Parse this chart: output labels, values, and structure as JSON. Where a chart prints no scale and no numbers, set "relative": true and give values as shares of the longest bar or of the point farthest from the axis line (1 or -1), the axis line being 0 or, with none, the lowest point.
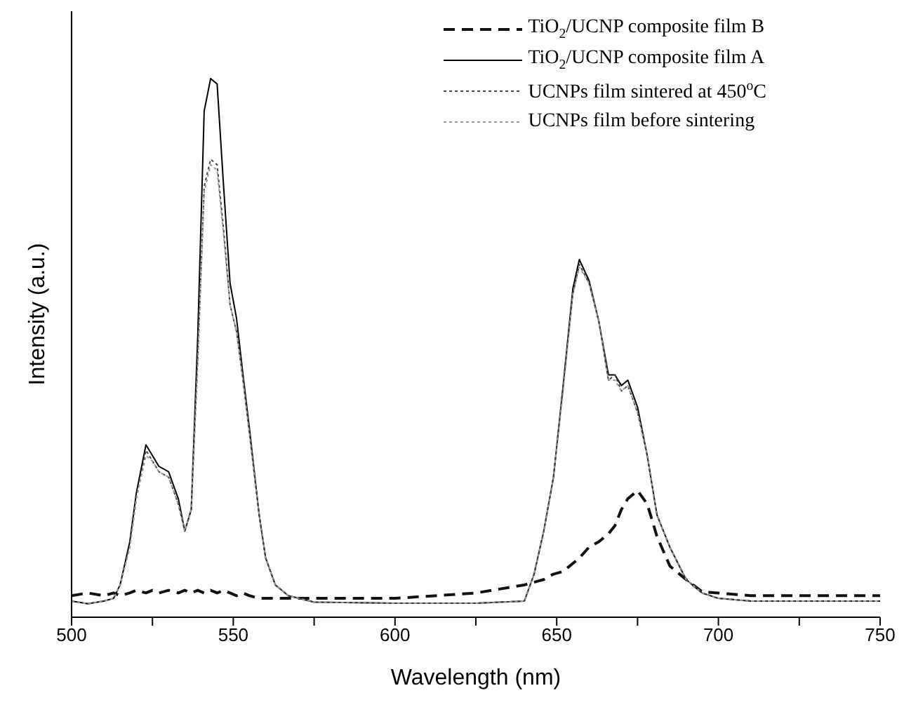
{
  "chart_data": {
    "type": "line",
    "relative": true,
    "xlabel": "Wavelength (nm)",
    "ylabel": "Intensity (a.u.)",
    "xlim": [
      500,
      750
    ],
    "xticks": [
      500,
      {
        "value": 525,
        "label": null
      },
      550,
      {
        "value": 575,
        "label": null
      },
      600,
      {
        "value": 625,
        "label": null
      },
      650,
      {
        "value": 675,
        "label": null
      },
      700,
      {
        "value": 725,
        "label": null
      },
      750
    ],
    "legend": "top right",
    "grid": false,
    "marker": "none",
    "x": [
      500,
      505,
      510,
      513,
      515,
      518,
      520,
      523,
      525,
      527,
      530,
      533,
      535,
      537,
      539,
      541,
      543,
      545,
      547,
      549,
      551,
      553,
      555,
      558,
      560,
      563,
      567,
      575,
      600,
      625,
      640,
      643,
      646,
      649,
      652,
      655,
      657,
      660,
      663,
      666,
      668,
      670,
      672,
      675,
      678,
      681,
      685,
      690,
      695,
      700,
      710,
      720,
      730,
      740,
      750
    ],
    "series": [
      {
        "name": "TiO$_{2}$/UCNP composite film B",
        "color": "#111111",
        "line_style": "dashed",
        "values": [
          0.04,
          0.045,
          0.04,
          0.045,
          0.04,
          0.045,
          0.05,
          0.045,
          0.05,
          0.045,
          0.05,
          0.045,
          0.05,
          0.045,
          0.05,
          0.045,
          0.05,
          0.045,
          0.05,
          0.045,
          0.04,
          0.045,
          0.04,
          0.035,
          0.035,
          0.035,
          0.035,
          0.035,
          0.035,
          0.045,
          0.06,
          0.065,
          0.07,
          0.08,
          0.085,
          0.1,
          0.11,
          0.13,
          0.14,
          0.155,
          0.17,
          0.2,
          0.22,
          0.235,
          0.21,
          0.15,
          0.095,
          0.07,
          0.047,
          0.045,
          0.04,
          0.04,
          0.04,
          0.04,
          0.04
        ]
      },
      {
        "name": "TiO$_{2}$/UCNP composite film A",
        "color": "#000000",
        "line_style": "solid",
        "values": [
          0.03,
          0.025,
          0.03,
          0.035,
          0.06,
          0.14,
          0.23,
          0.32,
          0.3,
          0.28,
          0.27,
          0.22,
          0.16,
          0.2,
          0.52,
          0.94,
          1,
          0.99,
          0.8,
          0.62,
          0.555,
          0.45,
          0.35,
          0.19,
          0.11,
          0.06,
          0.04,
          0.028,
          0.026,
          0.026,
          0.03,
          0.08,
          0.16,
          0.26,
          0.43,
          0.61,
          0.664,
          0.625,
          0.55,
          0.45,
          0.45,
          0.43,
          0.44,
          0.39,
          0.3,
          0.19,
          0.13,
          0.07,
          0.045,
          0.035,
          0.03,
          0.03,
          0.03,
          0.03,
          0.03
        ]
      },
      {
        "name": "UCNPs film sintered at 450$^{o}$C",
        "color": "#444444",
        "line_style": "dotted",
        "values": [
          0.03,
          0.025,
          0.03,
          0.035,
          0.06,
          0.13,
          0.22,
          0.31,
          0.29,
          0.27,
          0.26,
          0.21,
          0.16,
          0.2,
          0.48,
          0.8,
          0.85,
          0.84,
          0.72,
          0.58,
          0.53,
          0.44,
          0.34,
          0.19,
          0.11,
          0.06,
          0.04,
          0.028,
          0.026,
          0.026,
          0.03,
          0.08,
          0.16,
          0.26,
          0.43,
          0.6,
          0.655,
          0.62,
          0.55,
          0.44,
          0.45,
          0.42,
          0.43,
          0.38,
          0.3,
          0.19,
          0.13,
          0.07,
          0.045,
          0.035,
          0.03,
          0.03,
          0.03,
          0.03,
          0.03
        ]
      },
      {
        "name": "UCNPs film before sintering",
        "color": "#999999",
        "line_style": "dotted",
        "values": [
          0.03,
          0.025,
          0.03,
          0.035,
          0.06,
          0.13,
          0.22,
          0.3,
          0.29,
          0.27,
          0.26,
          0.21,
          0.16,
          0.2,
          0.47,
          0.79,
          0.84,
          0.83,
          0.71,
          0.58,
          0.53,
          0.44,
          0.34,
          0.19,
          0.11,
          0.06,
          0.04,
          0.028,
          0.026,
          0.026,
          0.03,
          0.08,
          0.16,
          0.26,
          0.42,
          0.6,
          0.65,
          0.62,
          0.55,
          0.44,
          0.44,
          0.42,
          0.43,
          0.38,
          0.3,
          0.19,
          0.13,
          0.07,
          0.045,
          0.035,
          0.03,
          0.03,
          0.03,
          0.03,
          0.03
        ]
      }
    ]
  }
}
